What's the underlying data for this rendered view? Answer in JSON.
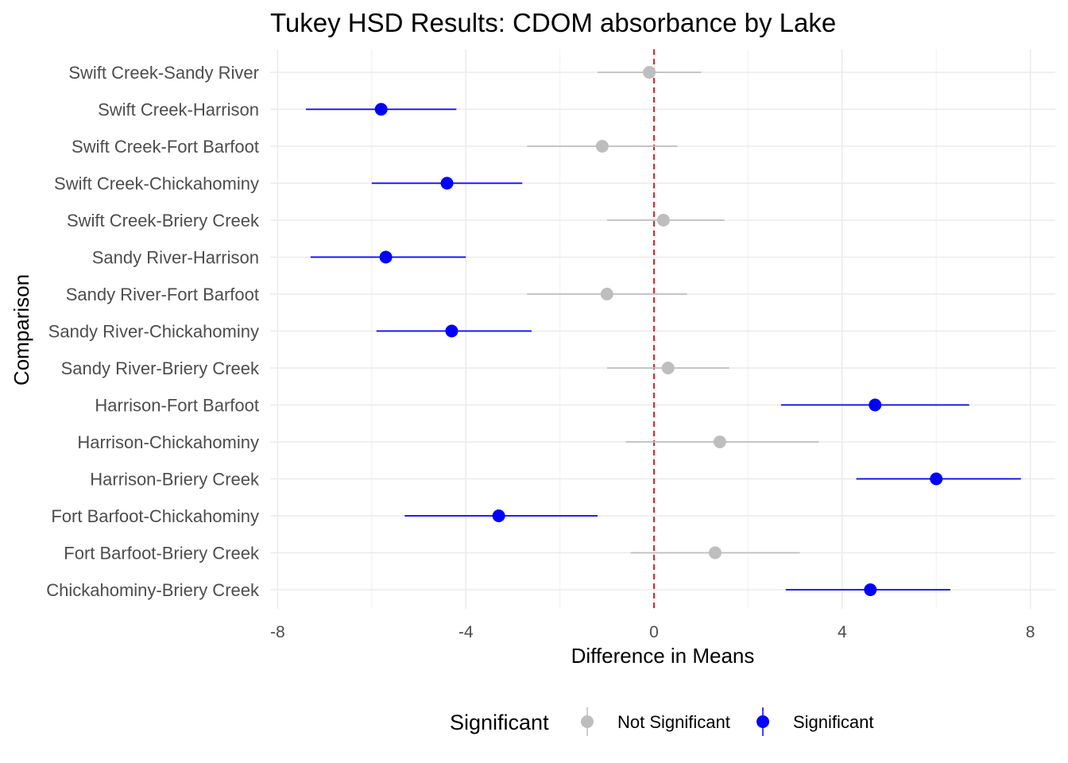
{
  "chart_data": {
    "type": "scatter",
    "subtype": "errorbar-dot",
    "title": "Tukey HSD Results: CDOM absorbance by Lake",
    "xlabel": "Difference in Means",
    "ylabel": "Comparison",
    "xlim": [
      -8.4,
      8.4
    ],
    "x_ticks": [
      -8,
      -4,
      0,
      4,
      8
    ],
    "x_tick_labels": [
      "-8",
      "-4",
      "0",
      "4",
      "8"
    ],
    "reference_line": {
      "x": 0,
      "style": "dashed",
      "color": "#d62728"
    },
    "grid": true,
    "legend": {
      "title": "Significant",
      "position": "bottom",
      "entries": [
        {
          "label": "Not Significant",
          "color": "#bebebe"
        },
        {
          "label": "Significant",
          "color": "#0000ff"
        }
      ]
    },
    "comparisons": [
      {
        "label": "Swift Creek-Sandy River",
        "diff": -0.1,
        "lwr": -1.2,
        "upr": 1.0,
        "significant": false
      },
      {
        "label": "Swift Creek-Harrison",
        "diff": -5.8,
        "lwr": -7.4,
        "upr": -4.2,
        "significant": true
      },
      {
        "label": "Swift Creek-Fort Barfoot",
        "diff": -1.1,
        "lwr": -2.7,
        "upr": 0.5,
        "significant": false
      },
      {
        "label": "Swift Creek-Chickahominy",
        "diff": -4.4,
        "lwr": -6.0,
        "upr": -2.8,
        "significant": true
      },
      {
        "label": "Swift Creek-Briery Creek",
        "diff": 0.2,
        "lwr": -1.0,
        "upr": 1.5,
        "significant": false
      },
      {
        "label": "Sandy River-Harrison",
        "diff": -5.7,
        "lwr": -7.3,
        "upr": -4.0,
        "significant": true
      },
      {
        "label": "Sandy River-Fort Barfoot",
        "diff": -1.0,
        "lwr": -2.7,
        "upr": 0.7,
        "significant": false
      },
      {
        "label": "Sandy River-Chickahominy",
        "diff": -4.3,
        "lwr": -5.9,
        "upr": -2.6,
        "significant": true
      },
      {
        "label": "Sandy River-Briery Creek",
        "diff": 0.3,
        "lwr": -1.0,
        "upr": 1.6,
        "significant": false
      },
      {
        "label": "Harrison-Fort Barfoot",
        "diff": 4.7,
        "lwr": 2.7,
        "upr": 6.7,
        "significant": true
      },
      {
        "label": "Harrison-Chickahominy",
        "diff": 1.4,
        "lwr": -0.6,
        "upr": 3.5,
        "significant": false
      },
      {
        "label": "Harrison-Briery Creek",
        "diff": 6.0,
        "lwr": 4.3,
        "upr": 7.8,
        "significant": true
      },
      {
        "label": "Fort Barfoot-Chickahominy",
        "diff": -3.3,
        "lwr": -5.3,
        "upr": -1.2,
        "significant": true
      },
      {
        "label": "Fort Barfoot-Briery Creek",
        "diff": 1.3,
        "lwr": -0.5,
        "upr": 3.1,
        "significant": false
      },
      {
        "label": "Chickahominy-Briery Creek",
        "diff": 4.6,
        "lwr": 2.8,
        "upr": 6.3,
        "significant": true
      }
    ]
  }
}
